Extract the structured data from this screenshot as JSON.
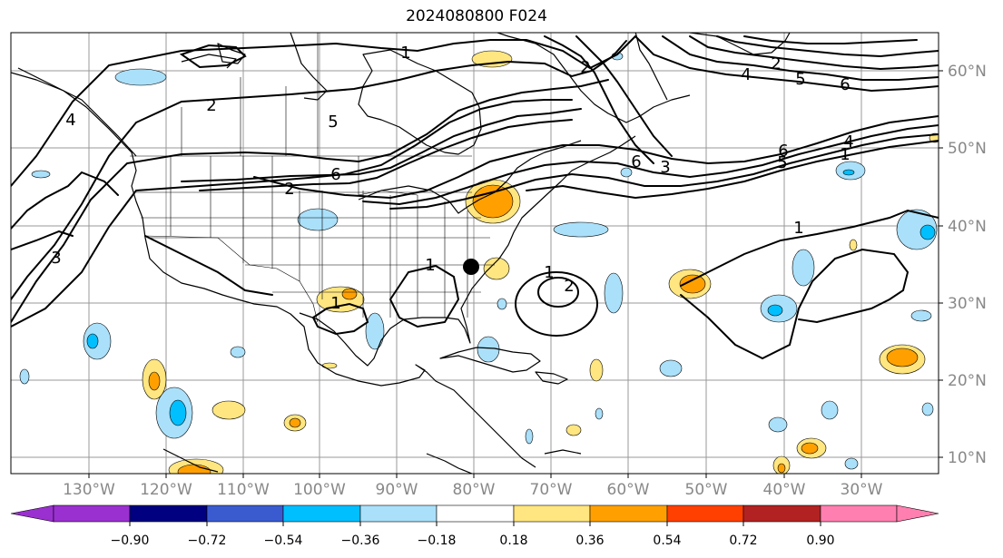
{
  "title": "2024080800 F024",
  "map": {
    "lon_labels": [
      "130°W",
      "120°W",
      "110°W",
      "100°W",
      "90°W",
      "80°W",
      "70°W",
      "60°W",
      "50°W",
      "40°W",
      "30°W"
    ],
    "lat_labels": [
      "60°N",
      "50°N",
      "40°N",
      "30°N",
      "20°N",
      "10°N"
    ],
    "contour_labels": [
      "1",
      "2",
      "3",
      "4",
      "5",
      "6",
      "1",
      "2",
      "1",
      "6",
      "2",
      "1",
      "1",
      "2",
      "4",
      "5",
      "6",
      "2",
      "1",
      "6",
      "3",
      "5",
      "4"
    ],
    "marker": "storm-location"
  },
  "colorbar": {
    "ticks": [
      "−0.90",
      "−0.72",
      "−0.54",
      "−0.36",
      "−0.18",
      "0.18",
      "0.36",
      "0.54",
      "0.72",
      "0.90"
    ],
    "colors": [
      "#9b30d0",
      "#000080",
      "#3a5bd0",
      "#00bfff",
      "#aae0fa",
      "#ffffff",
      "#ffe680",
      "#ffa000",
      "#ff4000",
      "#b22222",
      "#ff80b0"
    ]
  },
  "anomaly_colors": {
    "neg_light": "#aae0fa",
    "neg_mid": "#00bfff",
    "pos_light": "#ffe680",
    "pos_mid": "#ffa000"
  }
}
